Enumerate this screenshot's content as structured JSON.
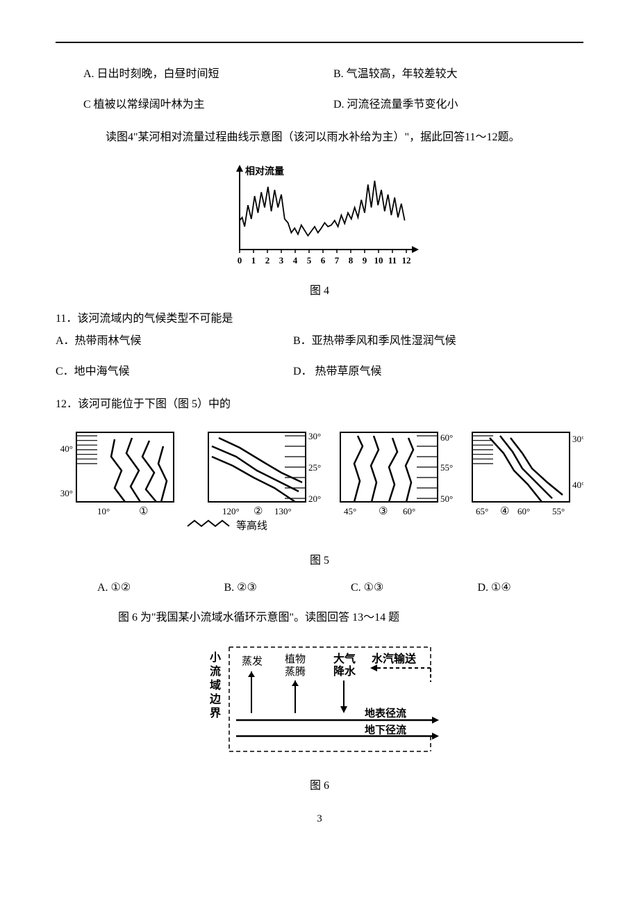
{
  "q10": {
    "optA": "A. 日出时刻晚，白昼时间短",
    "optB": "B. 气温较高，年较差较大",
    "optC": "C 植被以常绿阔叶林为主",
    "optD": "D. 河流径流量季节变化小"
  },
  "intro11": "读图4\"某河相对流量过程曲线示意图（该河以雨水补给为主）\"，据此回答11～12题。",
  "fig4": {
    "caption": "图 4",
    "ylabel": "相对流量",
    "xticks": [
      "0",
      "1",
      "2",
      "3",
      "4",
      "5",
      "6",
      "7",
      "8",
      "9",
      "10",
      "11",
      "12"
    ],
    "colors": {
      "axis": "#000000",
      "line": "#000000",
      "bg": "#ffffff"
    },
    "series": {
      "type": "line",
      "points": [
        [
          0,
          38
        ],
        [
          3,
          42
        ],
        [
          6,
          30
        ],
        [
          10,
          58
        ],
        [
          14,
          40
        ],
        [
          18,
          70
        ],
        [
          22,
          48
        ],
        [
          26,
          75
        ],
        [
          30,
          55
        ],
        [
          34,
          82
        ],
        [
          38,
          50
        ],
        [
          42,
          78
        ],
        [
          46,
          55
        ],
        [
          50,
          72
        ],
        [
          54,
          40
        ],
        [
          58,
          35
        ],
        [
          62,
          22
        ],
        [
          66,
          28
        ],
        [
          70,
          20
        ],
        [
          74,
          32
        ],
        [
          78,
          25
        ],
        [
          82,
          18
        ],
        [
          86,
          24
        ],
        [
          90,
          30
        ],
        [
          94,
          22
        ],
        [
          98,
          28
        ],
        [
          102,
          35
        ],
        [
          106,
          30
        ],
        [
          110,
          32
        ],
        [
          114,
          38
        ],
        [
          118,
          30
        ],
        [
          122,
          45
        ],
        [
          126,
          34
        ],
        [
          130,
          48
        ],
        [
          134,
          40
        ],
        [
          138,
          55
        ],
        [
          142,
          42
        ],
        [
          146,
          65
        ],
        [
          150,
          48
        ],
        [
          154,
          85
        ],
        [
          158,
          55
        ],
        [
          162,
          90
        ],
        [
          166,
          58
        ],
        [
          170,
          78
        ],
        [
          174,
          50
        ],
        [
          178,
          72
        ],
        [
          182,
          45
        ],
        [
          186,
          68
        ],
        [
          190,
          42
        ],
        [
          194,
          60
        ],
        [
          198,
          38
        ]
      ]
    }
  },
  "q11": {
    "stem": "11．该河流域内的气候类型不可能是",
    "optA": "A．热带雨林气候",
    "optB": "B．亚热带季风和季风性湿润气候",
    "optC": "C．地中海气候",
    "optD": "D．  热带草原气候"
  },
  "q12": {
    "stem": "12．该河可能位于下图（图 5）中的",
    "optA": "A. ①②",
    "optB": "B. ②③",
    "optC": "C. ①③",
    "optD": "D. ①④"
  },
  "fig5": {
    "caption": "图 5",
    "legend": "等高线",
    "panels": [
      {
        "id": "①",
        "xlabels": [
          "10°"
        ],
        "ylabels": [
          "40°",
          "30°"
        ]
      },
      {
        "id": "②",
        "xlabels": [
          "120°",
          "130°"
        ],
        "ylabels": [
          "30°",
          "25°",
          "20°"
        ]
      },
      {
        "id": "③",
        "xlabels": [
          "45°",
          "60°"
        ],
        "ylabels": [
          "60°",
          "55°",
          "50°"
        ]
      },
      {
        "id": "④",
        "xlabels": [
          "65°",
          "60°",
          "55°"
        ],
        "ylabels": [
          "30°",
          "40°"
        ]
      }
    ],
    "colors": {
      "line": "#000000",
      "hatch": "#000000",
      "bg": "#ffffff"
    }
  },
  "intro13": "图 6 为\"我国某小流域水循环示意图\"。读图回答 13～14 题",
  "fig6": {
    "caption": "图 6",
    "border_label": "小流域边界",
    "nodes": {
      "evap": "蒸发",
      "trans_top": "植物",
      "trans_bot": "蒸腾",
      "atm_top": "大气",
      "atm_bot": "降水",
      "vapor": "水汽输送",
      "surface": "地表径流",
      "ground": "地下径流"
    },
    "colors": {
      "border": "#000000",
      "text": "#000000",
      "bg": "#ffffff"
    }
  },
  "page_number": "3"
}
